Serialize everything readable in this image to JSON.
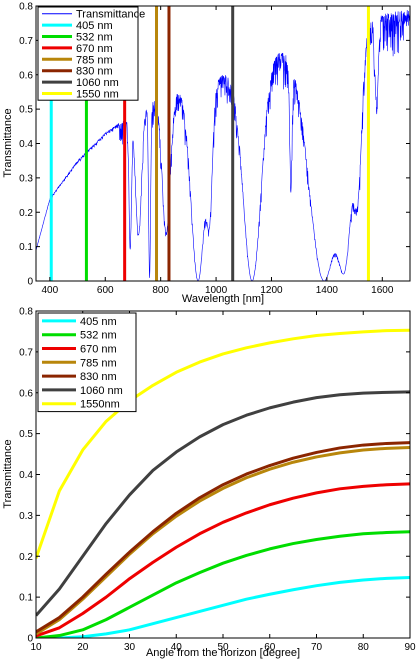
{
  "chart_data": [
    {
      "type": "line",
      "xlabel": "Wavelength [nm]",
      "ylabel": "Transmittance",
      "xlim": [
        350,
        1700
      ],
      "ylim": [
        0,
        0.8
      ],
      "xticks": [
        400,
        600,
        800,
        1000,
        1200,
        1400,
        1600
      ],
      "yticks": [
        0,
        0.1,
        0.2,
        0.3,
        0.4,
        0.5,
        0.6,
        0.7,
        0.8
      ],
      "grid": false,
      "legend_position": "top-left",
      "transmittance_series": {
        "name": "Transmittance",
        "color": "#0000ff",
        "envelope_x": [
          350,
          400,
          500,
          600,
          700,
          800,
          900,
          1000,
          1060,
          1100,
          1200,
          1300,
          1400,
          1500,
          1550,
          1600,
          1700
        ],
        "envelope_y": [
          0.09,
          0.24,
          0.35,
          0.43,
          0.49,
          0.54,
          0.57,
          0.6,
          0.61,
          0.63,
          0.67,
          0.69,
          0.7,
          0.73,
          0.76,
          0.78,
          0.79
        ],
        "absorption_bands": [
          {
            "center": 690,
            "width": 6,
            "min": 0.2
          },
          {
            "center": 720,
            "width": 15,
            "min": 0.27
          },
          {
            "center": 760,
            "width": 5,
            "min": 0.02
          },
          {
            "center": 820,
            "width": 20,
            "min": 0.26
          },
          {
            "center": 935,
            "width": 35,
            "min": 0.0
          },
          {
            "center": 975,
            "width": 15,
            "min": 0.35
          },
          {
            "center": 1130,
            "width": 45,
            "min": 0.0
          },
          {
            "center": 1270,
            "width": 6,
            "min": 0.45
          },
          {
            "center": 1390,
            "width": 75,
            "min": 0.0
          },
          {
            "center": 1460,
            "width": 40,
            "min": 0.05
          },
          {
            "center": 1510,
            "width": 20,
            "min": 0.4
          },
          {
            "center": 1580,
            "width": 8,
            "min": 0.68
          }
        ]
      },
      "laser_lines": [
        {
          "name": "405 nm",
          "x": 405,
          "color": "#00ffff"
        },
        {
          "name": "532 nm",
          "x": 532,
          "color": "#00dd00"
        },
        {
          "name": "670 nm",
          "x": 670,
          "color": "#ee0000"
        },
        {
          "name": "785 nm",
          "x": 785,
          "color": "#b8860b"
        },
        {
          "name": "830 nm",
          "x": 830,
          "color": "#8b2500"
        },
        {
          "name": "1060 nm",
          "x": 1060,
          "color": "#404040"
        },
        {
          "name": "1550 nm",
          "x": 1550,
          "color": "#ffff00"
        }
      ]
    },
    {
      "type": "line",
      "xlabel": "Angle from the horizon [degree]",
      "ylabel": "Transmittance",
      "xlim": [
        10,
        90
      ],
      "ylim": [
        0,
        0.8
      ],
      "xticks": [
        10,
        20,
        30,
        40,
        50,
        60,
        70,
        80,
        90
      ],
      "yticks": [
        0,
        0.1,
        0.2,
        0.3,
        0.4,
        0.5,
        0.6,
        0.7,
        0.8
      ],
      "grid": false,
      "legend_position": "top-left",
      "x": [
        10,
        15,
        20,
        25,
        30,
        35,
        40,
        45,
        50,
        55,
        60,
        65,
        70,
        75,
        80,
        85,
        90
      ],
      "series": [
        {
          "name": "405 nm",
          "color": "#00ffff",
          "values": [
            0.0,
            0.0,
            0.003,
            0.01,
            0.02,
            0.035,
            0.05,
            0.065,
            0.08,
            0.095,
            0.107,
            0.118,
            0.128,
            0.136,
            0.142,
            0.146,
            0.148
          ]
        },
        {
          "name": "532 nm",
          "color": "#00dd00",
          "values": [
            0.0,
            0.006,
            0.02,
            0.045,
            0.075,
            0.105,
            0.135,
            0.16,
            0.183,
            0.202,
            0.218,
            0.231,
            0.241,
            0.249,
            0.255,
            0.258,
            0.26
          ]
        },
        {
          "name": "670 nm",
          "color": "#ee0000",
          "values": [
            0.005,
            0.025,
            0.06,
            0.1,
            0.145,
            0.185,
            0.222,
            0.255,
            0.283,
            0.306,
            0.326,
            0.342,
            0.355,
            0.365,
            0.371,
            0.375,
            0.377
          ]
        },
        {
          "name": "785 nm",
          "color": "#b8860b",
          "values": [
            0.01,
            0.045,
            0.095,
            0.15,
            0.205,
            0.255,
            0.298,
            0.335,
            0.366,
            0.392,
            0.413,
            0.43,
            0.443,
            0.453,
            0.46,
            0.464,
            0.466
          ]
        },
        {
          "name": "830 nm",
          "color": "#8b2500",
          "values": [
            0.015,
            0.05,
            0.1,
            0.156,
            0.21,
            0.26,
            0.305,
            0.343,
            0.375,
            0.401,
            0.422,
            0.44,
            0.454,
            0.465,
            0.472,
            0.476,
            0.478
          ]
        },
        {
          "name": "1060 nm",
          "color": "#404040",
          "values": [
            0.055,
            0.12,
            0.2,
            0.28,
            0.35,
            0.41,
            0.455,
            0.492,
            0.522,
            0.545,
            0.563,
            0.577,
            0.588,
            0.595,
            0.599,
            0.601,
            0.602
          ]
        },
        {
          "name": "1550nm",
          "color": "#ffff00",
          "values": [
            0.195,
            0.36,
            0.46,
            0.53,
            0.58,
            0.618,
            0.65,
            0.675,
            0.695,
            0.71,
            0.722,
            0.732,
            0.74,
            0.745,
            0.749,
            0.752,
            0.753
          ]
        }
      ]
    }
  ]
}
